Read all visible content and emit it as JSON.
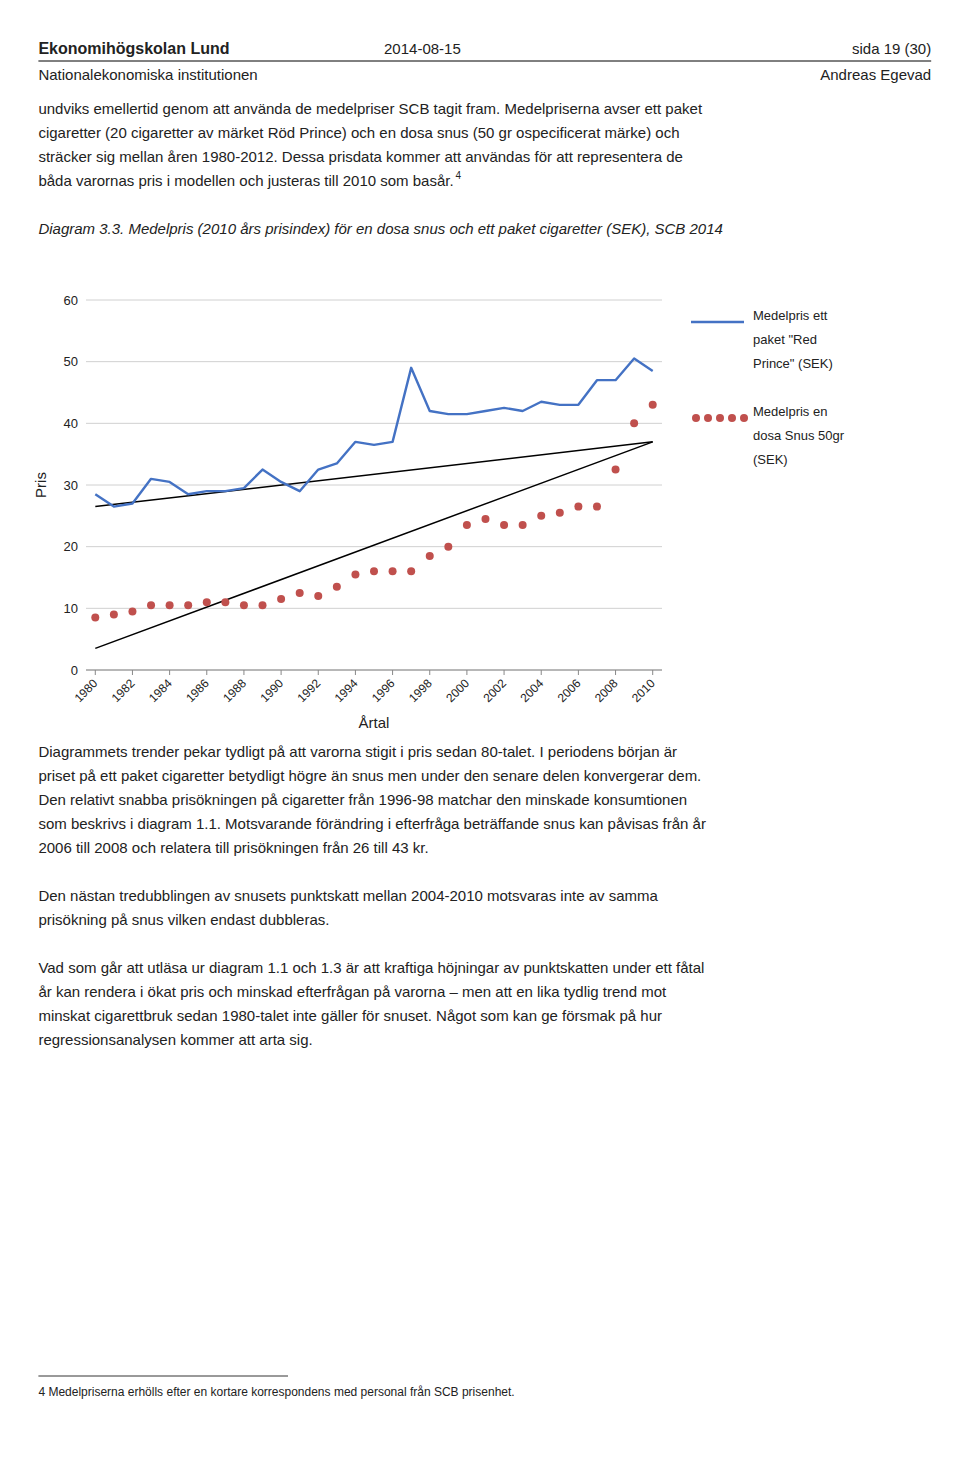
{
  "page_text": {
    "header_left": "Ekonomihögskolan Lund",
    "header_center": "2014-08-15",
    "header_right": "sida 19 (30)",
    "subheader_left": "Nationalekonomiska institutionen",
    "subheader_right": "Andreas Egevad",
    "body1": [
      "undviks emellertid genom att använda de medelpriser SCB tagit fram. Medelpriserna avser ett paket",
      "cigaretter (20 cigaretter av märket Röd Prince) och en dosa snus (50 gr ospecificerat märke) och",
      "sträcker sig mellan åren 1980-2012. Dessa prisdata kommer att användas för att representera de",
      "båda varornas pris i modellen och justeras till 2010 som basår."
    ],
    "body1_sup": "4",
    "body2": [
      "Diagrammets trender pekar tydligt på att varorna stigit i pris sedan 80-talet. I periodens början är",
      "priset på ett paket cigaretter betydligt högre än snus men under den senare delen konvergerar dem.",
      "Den relativt snabba prisökningen på cigaretter från 1996-98 matchar den minskade konsumtionen",
      "som beskrivs i diagram 1.1. Motsvarande förändring i efterfråga beträffande snus kan påvisas från år",
      "2006 till 2008 och relatera till prisökningen från 26 till 43 kr."
    ],
    "body3": [
      "Den nästan tredubblingen av snusets punktskatt mellan 2004-2010 motsvaras inte av samma",
      "prisökning på snus vilken endast dubbleras."
    ],
    "body4": [
      "Vad som går att utläsa ur diagram 1.1 och 1.3 är att kraftiga höjningar av punktskatten under ett fåtal",
      "år kan rendera i ökat pris och minskad efterfrågan på varorna – men att en lika tydlig trend mot",
      "minskat cigarettbruk sedan 1980-talet inte gäller för snuset. Något som kan ge försmak på hur",
      "regressionsanalysen kommer att arta sig."
    ],
    "footnote": "4 Medelpriserna erhölls efter en kortare korrespondens med personal från SCB prisenhet."
  },
  "chart_data": {
    "type": "line",
    "title": "Diagram 3.3. Medelpris (2010 års prisindex) för en dosa snus och ett paket cigaretter (SEK), SCB 2014",
    "x_label": "Årtal",
    "y_label": "Pris",
    "x": [
      1980,
      1981,
      1982,
      1983,
      1984,
      1985,
      1986,
      1987,
      1988,
      1989,
      1990,
      1991,
      1992,
      1993,
      1994,
      1995,
      1996,
      1997,
      1998,
      1999,
      2000,
      2001,
      2002,
      2003,
      2004,
      2005,
      2006,
      2007,
      2008,
      2009,
      2010
    ],
    "xlim": [
      1979.5,
      2010.5
    ],
    "xticks": [
      1980,
      1982,
      1984,
      1986,
      1988,
      1990,
      1992,
      1994,
      1996,
      1998,
      2000,
      2002,
      2004,
      2006,
      2008,
      2010
    ],
    "ylim": [
      0,
      60
    ],
    "yticks": [
      0,
      10,
      20,
      30,
      40,
      50,
      60
    ],
    "grid": "y",
    "series": [
      {
        "type": "line",
        "color": "#000000",
        "line_style": "solid",
        "x": [
          1980,
          2010
        ],
        "values": [
          26.5,
          37.0
        ]
      },
      {
        "type": "line",
        "color": "#000000",
        "line_style": "solid",
        "x": [
          1980,
          2010
        ],
        "values": [
          3.5,
          37.0
        ]
      },
      {
        "name": "Medelpris ett\npaket \"Red\nPrince\" (SEK)",
        "type": "line",
        "color": "#4472C4",
        "line_style": "solid",
        "values": [
          28.5,
          26.5,
          27.0,
          31.0,
          30.5,
          28.5,
          29.0,
          29.0,
          29.5,
          32.5,
          30.5,
          29.0,
          32.5,
          33.5,
          37.0,
          36.5,
          37.0,
          49.0,
          42.0,
          41.5,
          41.5,
          42.0,
          42.5,
          42.0,
          43.5,
          43.0,
          43.0,
          47.0,
          47.0,
          50.5,
          48.5
        ]
      },
      {
        "name": "Medelpris en\ndosa Snus 50gr\n(SEK)",
        "type": "scatter",
        "color": "#C0504D",
        "marker": "circle",
        "line_style": "none",
        "values": [
          8.5,
          9.0,
          9.5,
          10.5,
          10.5,
          10.5,
          11.0,
          11.0,
          10.5,
          10.5,
          11.5,
          12.5,
          12.0,
          13.5,
          15.5,
          16.0,
          16.0,
          16.0,
          18.5,
          20.0,
          23.5,
          24.5,
          23.5,
          23.5,
          25.0,
          25.5,
          26.5,
          26.5,
          32.5,
          40.0,
          43.0
        ]
      }
    ]
  }
}
